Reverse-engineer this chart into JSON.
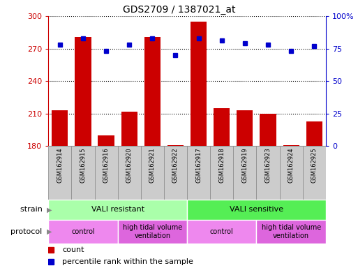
{
  "title": "GDS2709 / 1387021_at",
  "samples": [
    "GSM162914",
    "GSM162915",
    "GSM162916",
    "GSM162920",
    "GSM162921",
    "GSM162922",
    "GSM162917",
    "GSM162918",
    "GSM162919",
    "GSM162923",
    "GSM162924",
    "GSM162925"
  ],
  "counts": [
    213,
    281,
    190,
    212,
    281,
    181,
    295,
    215,
    213,
    210,
    181,
    203
  ],
  "percentiles": [
    78,
    83,
    73,
    78,
    83,
    70,
    83,
    81,
    79,
    78,
    73,
    77
  ],
  "ymin": 180,
  "ymax": 300,
  "yticks": [
    180,
    210,
    240,
    270,
    300
  ],
  "y2min": 0,
  "y2max": 100,
  "y2ticks": [
    0,
    25,
    50,
    75,
    100
  ],
  "bar_color": "#cc0000",
  "dot_color": "#0000cc",
  "bar_bottom": 180,
  "strain_groups": [
    {
      "label": "VALI resistant",
      "start": 0,
      "end": 6,
      "color": "#aaffaa"
    },
    {
      "label": "VALI sensitive",
      "start": 6,
      "end": 12,
      "color": "#55ee55"
    }
  ],
  "protocol_groups": [
    {
      "label": "control",
      "start": 0,
      "end": 3,
      "color": "#ee88ee"
    },
    {
      "label": "high tidal volume\nventilation",
      "start": 3,
      "end": 6,
      "color": "#dd66dd"
    },
    {
      "label": "control",
      "start": 6,
      "end": 9,
      "color": "#ee88ee"
    },
    {
      "label": "high tidal volume\nventilation",
      "start": 9,
      "end": 12,
      "color": "#dd66dd"
    }
  ],
  "strain_label": "strain",
  "protocol_label": "protocol",
  "legend_count": "count",
  "legend_pct": "percentile rank within the sample",
  "tick_color_left": "#cc0000",
  "tick_color_right": "#0000cc",
  "grid_color": "#000000",
  "sample_box_color": "#cccccc",
  "sample_box_edge": "#888888"
}
